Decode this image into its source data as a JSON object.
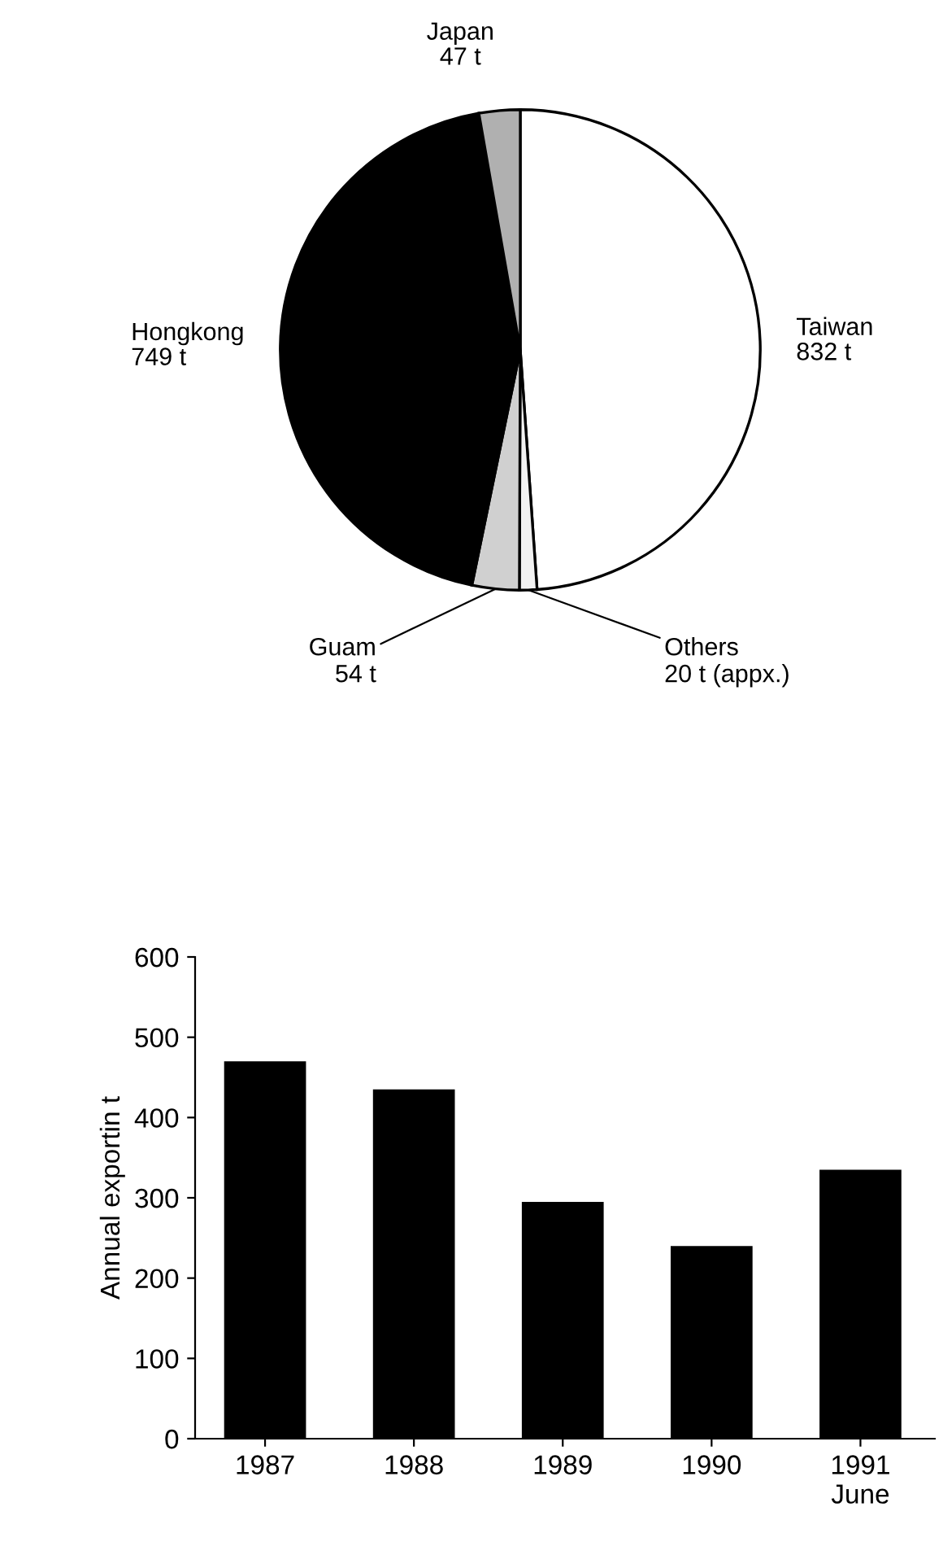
{
  "chart_data": [
    {
      "type": "pie",
      "categories": [
        "Taiwan",
        "Others",
        "Guam",
        "Hongkong",
        "Japan"
      ],
      "values": [
        832,
        20,
        54,
        749,
        47
      ],
      "value_labels": [
        "832 t",
        "20 t (appx.)",
        "54 t",
        "749 t",
        "47 t"
      ],
      "colors": [
        "#ffffff",
        "#f2f2f2",
        "#d0d0d0",
        "#000000",
        "#b0b0b0"
      ]
    },
    {
      "type": "bar",
      "categories": [
        "1987",
        "1988",
        "1989",
        "1990",
        "1991\nJune"
      ],
      "series": [
        {
          "color": "#000000",
          "values": [
            470,
            435,
            295,
            240,
            335
          ]
        }
      ],
      "ylabel": "Annual exportin t",
      "ylim": [
        0,
        600
      ],
      "yticks": [
        0,
        100,
        200,
        300,
        400,
        500,
        600
      ],
      "grid": false,
      "legend": false
    }
  ]
}
